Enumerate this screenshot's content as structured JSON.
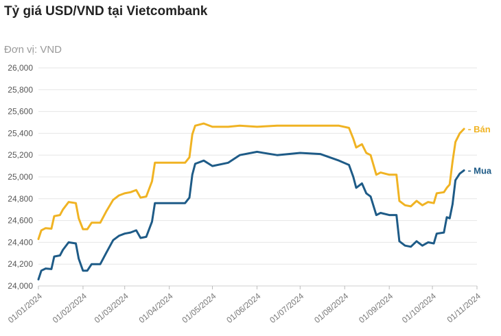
{
  "title": "Tỷ giá USD/VND tại Vietcombank",
  "unit_label": "Đơn vị: VND",
  "colors": {
    "ban": "#f0b323",
    "mua": "#1e5b87"
  },
  "chart_data": {
    "type": "line",
    "ylim": [
      24000,
      26000
    ],
    "y_ticks": [
      24000,
      24200,
      24400,
      24600,
      24800,
      25000,
      25200,
      25400,
      25600,
      25800,
      26000
    ],
    "y_tick_labels": [
      "24,000",
      "24,200",
      "24,400",
      "24,600",
      "24,800",
      "25,000",
      "25,200",
      "25,400",
      "25,600",
      "25,800",
      "26,000"
    ],
    "x_range": [
      "2024-01-01",
      "2024-11-01"
    ],
    "x_ticks": [
      "2024-01-01",
      "2024-02-01",
      "2024-03-01",
      "2024-04-01",
      "2024-05-01",
      "2024-06-01",
      "2024-07-01",
      "2024-08-01",
      "2024-09-01",
      "2024-10-01",
      "2024-11-01"
    ],
    "x_tick_labels": [
      "01/01/2024",
      "01/02/2024",
      "01/03/2024",
      "01/04/2024",
      "01/05/2024",
      "01/06/2024",
      "01/07/2024",
      "01/08/2024",
      "01/09/2024",
      "01/10/2024",
      "01/11/2024"
    ],
    "grid": true,
    "series": [
      {
        "name": "Bán",
        "points": [
          [
            "2024-01-01",
            24430
          ],
          [
            "2024-01-03",
            24510
          ],
          [
            "2024-01-06",
            24530
          ],
          [
            "2024-01-10",
            24525
          ],
          [
            "2024-01-12",
            24640
          ],
          [
            "2024-01-16",
            24650
          ],
          [
            "2024-01-18",
            24700
          ],
          [
            "2024-01-22",
            24770
          ],
          [
            "2024-01-27",
            24760
          ],
          [
            "2024-01-29",
            24620
          ],
          [
            "2024-02-01",
            24520
          ],
          [
            "2024-02-04",
            24520
          ],
          [
            "2024-02-07",
            24580
          ],
          [
            "2024-02-13",
            24580
          ],
          [
            "2024-02-17",
            24680
          ],
          [
            "2024-02-22",
            24790
          ],
          [
            "2024-02-26",
            24830
          ],
          [
            "2024-03-01",
            24850
          ],
          [
            "2024-03-05",
            24860
          ],
          [
            "2024-03-09",
            24880
          ],
          [
            "2024-03-12",
            24810
          ],
          [
            "2024-03-16",
            24820
          ],
          [
            "2024-03-20",
            24960
          ],
          [
            "2024-03-22",
            25130
          ],
          [
            "2024-04-01",
            25130
          ],
          [
            "2024-04-12",
            25130
          ],
          [
            "2024-04-15",
            25180
          ],
          [
            "2024-04-17",
            25390
          ],
          [
            "2024-04-19",
            25470
          ],
          [
            "2024-04-25",
            25490
          ],
          [
            "2024-05-01",
            25460
          ],
          [
            "2024-05-12",
            25460
          ],
          [
            "2024-05-20",
            25470
          ],
          [
            "2024-06-01",
            25460
          ],
          [
            "2024-06-15",
            25470
          ],
          [
            "2024-07-01",
            25470
          ],
          [
            "2024-07-15",
            25470
          ],
          [
            "2024-07-28",
            25470
          ],
          [
            "2024-08-04",
            25450
          ],
          [
            "2024-08-07",
            25350
          ],
          [
            "2024-08-09",
            25270
          ],
          [
            "2024-08-13",
            25300
          ],
          [
            "2024-08-16",
            25220
          ],
          [
            "2024-08-19",
            25200
          ],
          [
            "2024-08-23",
            25020
          ],
          [
            "2024-08-26",
            25040
          ],
          [
            "2024-09-01",
            25020
          ],
          [
            "2024-09-06",
            25020
          ],
          [
            "2024-09-08",
            24780
          ],
          [
            "2024-09-12",
            24740
          ],
          [
            "2024-09-16",
            24730
          ],
          [
            "2024-09-20",
            24780
          ],
          [
            "2024-09-24",
            24740
          ],
          [
            "2024-09-28",
            24770
          ],
          [
            "2024-10-02",
            24760
          ],
          [
            "2024-10-04",
            24850
          ],
          [
            "2024-10-09",
            24860
          ],
          [
            "2024-10-11",
            24900
          ],
          [
            "2024-10-13",
            24930
          ],
          [
            "2024-10-15",
            25140
          ],
          [
            "2024-10-17",
            25320
          ],
          [
            "2024-10-20",
            25400
          ],
          [
            "2024-10-23",
            25440
          ]
        ]
      },
      {
        "name": "Mua",
        "points": [
          [
            "2024-01-01",
            24060
          ],
          [
            "2024-01-03",
            24140
          ],
          [
            "2024-01-06",
            24160
          ],
          [
            "2024-01-10",
            24155
          ],
          [
            "2024-01-12",
            24270
          ],
          [
            "2024-01-16",
            24280
          ],
          [
            "2024-01-18",
            24330
          ],
          [
            "2024-01-22",
            24400
          ],
          [
            "2024-01-27",
            24390
          ],
          [
            "2024-01-29",
            24250
          ],
          [
            "2024-02-01",
            24140
          ],
          [
            "2024-02-04",
            24140
          ],
          [
            "2024-02-07",
            24200
          ],
          [
            "2024-02-13",
            24200
          ],
          [
            "2024-02-17",
            24300
          ],
          [
            "2024-02-22",
            24420
          ],
          [
            "2024-02-26",
            24460
          ],
          [
            "2024-03-01",
            24480
          ],
          [
            "2024-03-05",
            24490
          ],
          [
            "2024-03-09",
            24510
          ],
          [
            "2024-03-12",
            24440
          ],
          [
            "2024-03-16",
            24450
          ],
          [
            "2024-03-20",
            24590
          ],
          [
            "2024-03-22",
            24760
          ],
          [
            "2024-04-01",
            24760
          ],
          [
            "2024-04-12",
            24760
          ],
          [
            "2024-04-15",
            24810
          ],
          [
            "2024-04-17",
            25020
          ],
          [
            "2024-04-19",
            25120
          ],
          [
            "2024-04-25",
            25150
          ],
          [
            "2024-05-01",
            25100
          ],
          [
            "2024-05-12",
            25130
          ],
          [
            "2024-05-20",
            25200
          ],
          [
            "2024-06-01",
            25230
          ],
          [
            "2024-06-15",
            25200
          ],
          [
            "2024-07-01",
            25220
          ],
          [
            "2024-07-15",
            25210
          ],
          [
            "2024-07-28",
            25150
          ],
          [
            "2024-08-04",
            25110
          ],
          [
            "2024-08-07",
            25000
          ],
          [
            "2024-08-09",
            24900
          ],
          [
            "2024-08-13",
            24940
          ],
          [
            "2024-08-16",
            24850
          ],
          [
            "2024-08-19",
            24820
          ],
          [
            "2024-08-23",
            24650
          ],
          [
            "2024-08-26",
            24670
          ],
          [
            "2024-09-01",
            24650
          ],
          [
            "2024-09-06",
            24650
          ],
          [
            "2024-09-08",
            24410
          ],
          [
            "2024-09-12",
            24370
          ],
          [
            "2024-09-16",
            24360
          ],
          [
            "2024-09-20",
            24410
          ],
          [
            "2024-09-24",
            24370
          ],
          [
            "2024-09-28",
            24400
          ],
          [
            "2024-10-02",
            24390
          ],
          [
            "2024-10-04",
            24480
          ],
          [
            "2024-10-09",
            24490
          ],
          [
            "2024-10-11",
            24630
          ],
          [
            "2024-10-13",
            24620
          ],
          [
            "2024-10-15",
            24750
          ],
          [
            "2024-10-17",
            24970
          ],
          [
            "2024-10-20",
            25030
          ],
          [
            "2024-10-23",
            25060
          ]
        ]
      }
    ]
  }
}
